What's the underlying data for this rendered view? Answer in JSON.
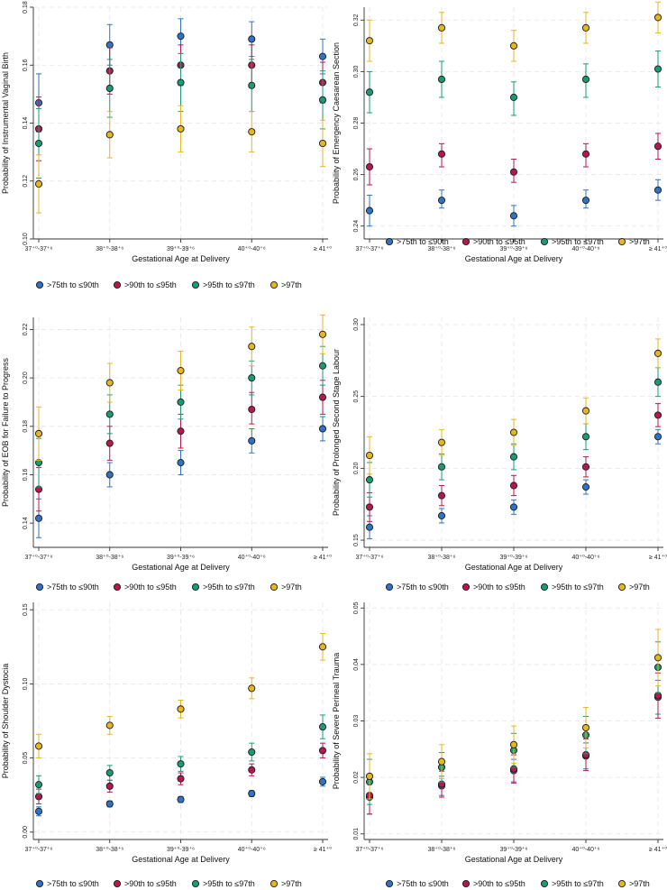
{
  "series_styles": [
    {
      "name": ">75th to ≤90th",
      "color": "#2f73c6"
    },
    {
      "name": ">90th to ≤95th",
      "color": "#b5194a"
    },
    {
      "name": ">95th to ≤97th",
      "color": "#1a9b74"
    },
    {
      "name": ">97th",
      "color": "#e6b620"
    }
  ],
  "x_categories": [
    "37⁺⁰-37⁺⁶",
    "38⁺⁰-38⁺⁶",
    "39⁺⁰-39⁺⁶",
    "40⁺⁰-40⁺⁶",
    "≥ 41⁺⁰"
  ],
  "chart_data": [
    {
      "type": "scatter",
      "xlabel": "Gestational Age at Delivery",
      "ylabel": "Probability of Instrumental Vaginal Birth",
      "ylim": [
        0.1,
        0.18
      ],
      "yticks": [
        "0.10",
        "0.12",
        "0.14",
        "0.16",
        "0.18"
      ],
      "categories": [
        "37⁺⁰-37⁺⁶",
        "38⁺⁰-38⁺⁶",
        "39⁺⁰-39⁺⁶",
        "40⁺⁰-40⁺⁶",
        "≥ 41⁺⁰"
      ],
      "series": [
        {
          "name": ">75th to ≤90th",
          "values": [
            0.147,
            0.167,
            0.17,
            0.169,
            0.163
          ],
          "lower": [
            0.137,
            0.16,
            0.164,
            0.163,
            0.157
          ],
          "upper": [
            0.157,
            0.174,
            0.176,
            0.175,
            0.169
          ]
        },
        {
          "name": ">90th to ≤95th",
          "values": [
            0.138,
            0.158,
            0.16,
            0.16,
            0.154
          ],
          "lower": [
            0.127,
            0.15,
            0.153,
            0.153,
            0.147
          ],
          "upper": [
            0.149,
            0.166,
            0.167,
            0.167,
            0.161
          ]
        },
        {
          "name": ">95th to ≤97th",
          "values": [
            0.133,
            0.152,
            0.154,
            0.153,
            0.148
          ],
          "lower": [
            0.121,
            0.142,
            0.144,
            0.144,
            0.138
          ],
          "upper": [
            0.145,
            0.162,
            0.164,
            0.162,
            0.158
          ]
        },
        {
          "name": ">97th",
          "values": [
            0.119,
            0.136,
            0.138,
            0.137,
            0.133
          ],
          "lower": [
            0.109,
            0.128,
            0.13,
            0.13,
            0.125
          ],
          "upper": [
            0.129,
            0.144,
            0.146,
            0.144,
            0.141
          ]
        }
      ]
    },
    {
      "type": "scatter",
      "xlabel": "Gestational Age at Delivery",
      "ylabel": "Probability of Emergency Caesarean Section",
      "ylim": [
        0.235,
        0.325
      ],
      "yticks": [
        "0.24",
        "0.26",
        "0.28",
        "0.30",
        "0.32"
      ],
      "categories": [
        "37⁺⁰-37⁺⁶",
        "38⁺⁰-38⁺⁶",
        "39⁺⁰-39⁺⁶",
        "40⁺⁰-40⁺⁶",
        "≥ 41⁺⁰"
      ],
      "series": [
        {
          "name": ">75th to ≤90th",
          "values": [
            0.246,
            0.25,
            0.244,
            0.25,
            0.254
          ],
          "lower": [
            0.24,
            0.247,
            0.24,
            0.247,
            0.25
          ],
          "upper": [
            0.252,
            0.254,
            0.248,
            0.254,
            0.258
          ]
        },
        {
          "name": ">90th to ≤95th",
          "values": [
            0.263,
            0.268,
            0.261,
            0.268,
            0.271
          ],
          "lower": [
            0.256,
            0.263,
            0.257,
            0.263,
            0.266
          ],
          "upper": [
            0.27,
            0.272,
            0.266,
            0.272,
            0.276
          ]
        },
        {
          "name": ">95th to ≤97th",
          "values": [
            0.292,
            0.297,
            0.29,
            0.297,
            0.301
          ],
          "lower": [
            0.284,
            0.29,
            0.283,
            0.29,
            0.294
          ],
          "upper": [
            0.3,
            0.304,
            0.296,
            0.303,
            0.308
          ]
        },
        {
          "name": ">97th",
          "values": [
            0.312,
            0.317,
            0.31,
            0.317,
            0.321
          ],
          "lower": [
            0.304,
            0.311,
            0.304,
            0.311,
            0.315
          ],
          "upper": [
            0.32,
            0.323,
            0.316,
            0.323,
            0.327
          ]
        }
      ]
    },
    {
      "type": "scatter",
      "xlabel": "Gestational Age at Delivery",
      "ylabel": "Probability of EOB for Failure to Progress",
      "ylim": [
        0.13,
        0.225
      ],
      "yticks": [
        "0.14",
        "0.16",
        "0.18",
        "0.20",
        "0.22"
      ],
      "categories": [
        "37⁺⁰-37⁺⁶",
        "38⁺⁰-38⁺⁶",
        "39⁺⁰-39⁺⁶",
        "40⁺⁰-40⁺⁶",
        "≥ 41⁺⁰"
      ],
      "series": [
        {
          "name": ">75th to ≤90th",
          "values": [
            0.142,
            0.16,
            0.165,
            0.174,
            0.179
          ],
          "lower": [
            0.134,
            0.155,
            0.16,
            0.169,
            0.174
          ],
          "upper": [
            0.15,
            0.165,
            0.17,
            0.179,
            0.184
          ]
        },
        {
          "name": ">90th to ≤95th",
          "values": [
            0.154,
            0.173,
            0.178,
            0.187,
            0.192
          ],
          "lower": [
            0.145,
            0.166,
            0.171,
            0.181,
            0.185
          ],
          "upper": [
            0.163,
            0.18,
            0.185,
            0.194,
            0.199
          ]
        },
        {
          "name": ">95th to ≤97th",
          "values": [
            0.165,
            0.185,
            0.19,
            0.2,
            0.205
          ],
          "lower": [
            0.155,
            0.177,
            0.183,
            0.193,
            0.197
          ],
          "upper": [
            0.175,
            0.193,
            0.197,
            0.207,
            0.213
          ]
        },
        {
          "name": ">97th",
          "values": [
            0.177,
            0.198,
            0.203,
            0.213,
            0.218
          ],
          "lower": [
            0.166,
            0.19,
            0.195,
            0.205,
            0.21
          ],
          "upper": [
            0.188,
            0.206,
            0.211,
            0.221,
            0.226
          ]
        }
      ]
    },
    {
      "type": "scatter",
      "xlabel": "Gestational Age at Delivery",
      "ylabel": "Probability of Prolonged Second Stage Labour",
      "ylim": [
        0.145,
        0.305
      ],
      "yticks": [
        "0.15",
        "0.20",
        "0.25",
        "0.30"
      ],
      "categories": [
        "37⁺⁰-37⁺⁶",
        "38⁺⁰-38⁺⁶",
        "39⁺⁰-39⁺⁶",
        "40⁺⁰-40⁺⁶",
        "≥ 41⁺⁰"
      ],
      "series": [
        {
          "name": ">75th to ≤90th",
          "values": [
            0.159,
            0.167,
            0.173,
            0.187,
            0.222
          ],
          "lower": [
            0.151,
            0.162,
            0.168,
            0.182,
            0.217
          ],
          "upper": [
            0.167,
            0.172,
            0.178,
            0.192,
            0.227
          ]
        },
        {
          "name": ">90th to ≤95th",
          "values": [
            0.173,
            0.181,
            0.188,
            0.201,
            0.237
          ],
          "lower": [
            0.163,
            0.174,
            0.181,
            0.194,
            0.229
          ],
          "upper": [
            0.183,
            0.188,
            0.195,
            0.208,
            0.245
          ]
        },
        {
          "name": ">95th to ≤97th",
          "values": [
            0.192,
            0.201,
            0.208,
            0.222,
            0.26
          ],
          "lower": [
            0.18,
            0.192,
            0.199,
            0.213,
            0.25
          ],
          "upper": [
            0.204,
            0.21,
            0.217,
            0.231,
            0.27
          ]
        },
        {
          "name": ">97th",
          "values": [
            0.209,
            0.218,
            0.225,
            0.24,
            0.28
          ],
          "lower": [
            0.196,
            0.209,
            0.216,
            0.231,
            0.27
          ],
          "upper": [
            0.222,
            0.227,
            0.234,
            0.249,
            0.29
          ]
        }
      ]
    },
    {
      "type": "scatter",
      "xlabel": "Gestational Age at Delivery",
      "ylabel": "Probability of Shoulder Dystocia",
      "ylim": [
        -0.005,
        0.155
      ],
      "yticks": [
        "0.00",
        "0.05",
        "0.10",
        "0.15"
      ],
      "categories": [
        "37⁺⁰-37⁺⁶",
        "38⁺⁰-38⁺⁶",
        "39⁺⁰-39⁺⁶",
        "40⁺⁰-40⁺⁶",
        "≥ 41⁺⁰"
      ],
      "series": [
        {
          "name": ">75th to ≤90th",
          "values": [
            0.014,
            0.019,
            0.022,
            0.026,
            0.034
          ],
          "lower": [
            0.011,
            0.017,
            0.02,
            0.024,
            0.031
          ],
          "upper": [
            0.017,
            0.021,
            0.024,
            0.028,
            0.037
          ]
        },
        {
          "name": ">90th to ≤95th",
          "values": [
            0.024,
            0.031,
            0.036,
            0.042,
            0.055
          ],
          "lower": [
            0.019,
            0.027,
            0.032,
            0.038,
            0.05
          ],
          "upper": [
            0.029,
            0.035,
            0.04,
            0.046,
            0.06
          ]
        },
        {
          "name": ">95th to ≤97th",
          "values": [
            0.032,
            0.04,
            0.046,
            0.054,
            0.071
          ],
          "lower": [
            0.026,
            0.035,
            0.041,
            0.048,
            0.063
          ],
          "upper": [
            0.038,
            0.045,
            0.051,
            0.06,
            0.079
          ]
        },
        {
          "name": ">97th",
          "values": [
            0.058,
            0.072,
            0.083,
            0.097,
            0.125
          ],
          "lower": [
            0.05,
            0.066,
            0.077,
            0.09,
            0.116
          ],
          "upper": [
            0.066,
            0.078,
            0.089,
            0.104,
            0.134
          ]
        }
      ]
    },
    {
      "type": "scatter",
      "xlabel": "Gestational Age at Delivery",
      "ylabel": "Probability of Severe Perineal Trauma",
      "ylim": [
        0.009,
        0.051
      ],
      "yticks": [
        "0.01",
        "0.02",
        "0.03",
        "0.04",
        "0.05"
      ],
      "categories": [
        "37⁺⁰-37⁺⁶",
        "38⁺⁰-38⁺⁶",
        "39⁺⁰-39⁺⁶",
        "40⁺⁰-40⁺⁶",
        "≥ 41⁺⁰"
      ],
      "series": [
        {
          "name": ">75th to ≤90th",
          "values": [
            0.0165,
            0.0185,
            0.0212,
            0.0238,
            0.0342
          ],
          "lower": [
            0.0135,
            0.0168,
            0.0192,
            0.0215,
            0.0312
          ],
          "upper": [
            0.0195,
            0.0202,
            0.0232,
            0.0261,
            0.0372
          ]
        },
        {
          "name": ">90th to ≤95th",
          "values": [
            0.0168,
            0.0188,
            0.0215,
            0.024,
            0.0345
          ],
          "lower": [
            0.0135,
            0.0165,
            0.019,
            0.0212,
            0.0305
          ],
          "upper": [
            0.0201,
            0.0211,
            0.024,
            0.0268,
            0.0385
          ]
        },
        {
          "name": ">95th to ≤97th",
          "values": [
            0.0192,
            0.0218,
            0.0248,
            0.0275,
            0.0395
          ],
          "lower": [
            0.0152,
            0.0192,
            0.0218,
            0.0242,
            0.035
          ],
          "upper": [
            0.0232,
            0.0244,
            0.0278,
            0.0308,
            0.044
          ]
        },
        {
          "name": ">97th",
          "values": [
            0.0202,
            0.0228,
            0.0258,
            0.0288,
            0.0412
          ],
          "lower": [
            0.0162,
            0.0198,
            0.0225,
            0.0252,
            0.0362
          ],
          "upper": [
            0.0242,
            0.0258,
            0.0291,
            0.0324,
            0.0462
          ]
        }
      ]
    }
  ]
}
